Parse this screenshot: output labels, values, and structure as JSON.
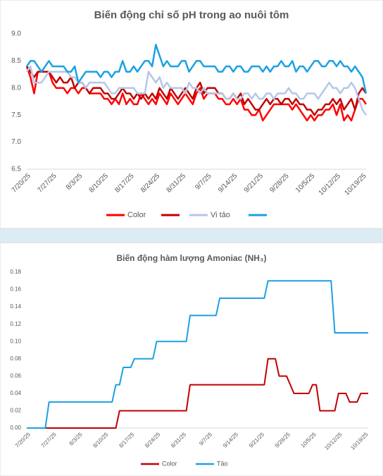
{
  "chart_data": [
    {
      "type": "line",
      "title": "Biến động chỉ số pH trong ao nuôi tôm",
      "categories": [
        "7/20/25",
        null,
        null,
        null,
        null,
        null,
        null,
        "7/27/25",
        null,
        null,
        null,
        null,
        null,
        null,
        "8/3/25",
        null,
        null,
        null,
        null,
        null,
        null,
        "8/10/25",
        null,
        null,
        null,
        null,
        null,
        null,
        "8/17/25",
        null,
        null,
        null,
        null,
        null,
        null,
        "8/24/25",
        null,
        null,
        null,
        null,
        null,
        null,
        "8/31/25",
        null,
        null,
        null,
        null,
        null,
        null,
        "9/7/25",
        null,
        null,
        null,
        null,
        null,
        null,
        "9/14/25",
        null,
        null,
        null,
        null,
        null,
        null,
        "9/21/25",
        null,
        null,
        null,
        null,
        null,
        null,
        "9/28/25",
        null,
        null,
        null,
        null,
        null,
        null,
        "10/5/25",
        null,
        null,
        null,
        null,
        null,
        null,
        "10/12/25",
        null,
        null,
        null,
        null,
        null,
        null,
        "10/19/25",
        null
      ],
      "series": [
        {
          "name": "Color",
          "color": "#ff0000",
          "values": [
            8.4,
            8.2,
            7.9,
            8.3,
            8.3,
            8.3,
            8.3,
            8.1,
            8.0,
            8.0,
            8.0,
            7.9,
            8.0,
            8.0,
            7.9,
            8.0,
            8.0,
            7.9,
            7.9,
            7.9,
            7.9,
            7.8,
            7.8,
            7.7,
            7.8,
            7.7,
            7.9,
            7.7,
            7.8,
            7.7,
            7.7,
            7.9,
            7.8,
            7.7,
            7.8,
            7.7,
            7.9,
            7.8,
            7.7,
            7.9,
            7.8,
            7.7,
            7.8,
            7.9,
            7.8,
            7.7,
            7.9,
            8.0,
            7.8,
            7.9,
            7.9,
            7.9,
            7.8,
            7.8,
            7.7,
            7.7,
            7.8,
            7.7,
            7.8,
            7.6,
            7.6,
            7.5,
            7.5,
            7.6,
            7.4,
            7.5,
            7.6,
            7.7,
            7.7,
            7.7,
            7.7,
            7.7,
            7.6,
            7.7,
            7.6,
            7.5,
            7.4,
            7.5,
            7.4,
            7.5,
            7.5,
            7.6,
            7.6,
            7.7,
            7.5,
            7.7,
            7.4,
            7.5,
            7.4,
            7.6,
            7.8,
            7.8,
            7.7
          ]
        },
        {
          "color": "#c00000",
          "values": [
            8.4,
            8.3,
            8.2,
            8.3,
            8.3,
            8.3,
            8.3,
            8.2,
            8.1,
            8.2,
            8.1,
            8.1,
            8.2,
            8.0,
            8.1,
            8.1,
            8.0,
            7.9,
            8.0,
            8.0,
            8.0,
            7.9,
            7.9,
            7.8,
            7.8,
            7.9,
            8.0,
            7.9,
            7.9,
            7.8,
            7.9,
            7.8,
            7.9,
            7.8,
            7.9,
            7.8,
            8.0,
            7.9,
            7.8,
            8.0,
            7.9,
            7.8,
            7.9,
            8.0,
            7.9,
            7.8,
            8.0,
            8.1,
            7.9,
            8.0,
            8.0,
            8.0,
            7.9,
            7.9,
            7.8,
            7.8,
            7.9,
            7.8,
            7.9,
            7.7,
            7.8,
            7.7,
            7.6,
            7.6,
            7.7,
            7.8,
            7.7,
            7.8,
            7.8,
            7.7,
            7.8,
            7.8,
            7.7,
            7.8,
            7.7,
            7.7,
            7.6,
            7.6,
            7.5,
            7.6,
            7.6,
            7.7,
            7.7,
            7.8,
            7.7,
            7.8,
            7.6,
            7.7,
            7.8,
            7.6,
            7.9,
            8.0,
            7.9
          ]
        },
        {
          "name": "Vi tảo",
          "color": "#b4c7e7",
          "values": [
            8.3,
            8.4,
            8.1,
            8.1,
            8.1,
            8.2,
            8.3,
            8.3,
            8.3,
            8.3,
            8.3,
            8.3,
            8.2,
            8.2,
            8.1,
            8.1,
            8.0,
            8.1,
            8.1,
            8.1,
            8.1,
            8.1,
            8.0,
            7.9,
            7.9,
            8.0,
            8.0,
            8.0,
            8.0,
            8.0,
            7.9,
            7.9,
            7.9,
            8.3,
            8.2,
            8.1,
            8.2,
            8.0,
            8.1,
            8.0,
            8.0,
            8.0,
            8.0,
            7.9,
            8.1,
            8.0,
            8.0,
            7.9,
            8.0,
            7.9,
            7.9,
            7.9,
            7.9,
            7.9,
            7.8,
            7.8,
            7.9,
            7.8,
            7.8,
            7.9,
            7.9,
            7.8,
            7.9,
            7.8,
            7.8,
            7.9,
            7.9,
            7.8,
            7.9,
            7.9,
            7.9,
            8.0,
            7.9,
            7.9,
            7.8,
            7.8,
            7.9,
            7.9,
            7.9,
            7.8,
            7.9,
            8.0,
            8.1,
            8.0,
            8.0,
            7.9,
            8.0,
            8.0,
            8.1,
            8.0,
            7.8,
            7.6,
            7.5
          ]
        },
        {
          "color": "#1ba1e2",
          "values": [
            8.4,
            8.5,
            8.5,
            8.4,
            8.3,
            8.4,
            8.5,
            8.4,
            8.4,
            8.4,
            8.4,
            8.3,
            8.3,
            8.4,
            8.1,
            8.2,
            8.3,
            8.3,
            8.3,
            8.3,
            8.2,
            8.3,
            8.3,
            8.2,
            8.3,
            8.3,
            8.5,
            8.3,
            8.3,
            8.4,
            8.3,
            8.4,
            8.5,
            8.5,
            8.4,
            8.8,
            8.6,
            8.4,
            8.5,
            8.4,
            8.4,
            8.4,
            8.5,
            8.5,
            8.3,
            8.4,
            8.5,
            8.5,
            8.4,
            8.4,
            8.4,
            8.4,
            8.3,
            8.3,
            8.4,
            8.4,
            8.3,
            8.4,
            8.4,
            8.3,
            8.3,
            8.4,
            8.4,
            8.4,
            8.3,
            8.4,
            8.3,
            8.4,
            8.4,
            8.5,
            8.4,
            8.4,
            8.5,
            8.3,
            8.4,
            8.4,
            8.3,
            8.4,
            8.5,
            8.5,
            8.4,
            8.4,
            8.5,
            8.5,
            8.4,
            8.5,
            8.4,
            8.4,
            8.3,
            8.4,
            8.3,
            8.2,
            7.9
          ]
        }
      ],
      "ylim": [
        6.5,
        9.0
      ],
      "yticks": [
        {
          "value": 6.5,
          "label": "6.5"
        },
        {
          "value": 7,
          "label": "7.0"
        },
        {
          "value": 7.5,
          "label": "7.5"
        },
        {
          "value": 8,
          "label": "8.0"
        },
        {
          "value": 8.5,
          "label": "8.5"
        },
        {
          "value": 9,
          "label": "9.0"
        }
      ],
      "grid": false,
      "legend": "bottom"
    },
    {
      "type": "line",
      "title": "Biến động hàm lượng Amoniac (NH₃)",
      "categories": [
        "7/20/25",
        null,
        null,
        null,
        null,
        null,
        null,
        "7/27/25",
        null,
        null,
        null,
        null,
        null,
        null,
        "8/3/25",
        null,
        null,
        null,
        null,
        null,
        null,
        "8/10/25",
        null,
        null,
        null,
        null,
        null,
        null,
        "8/17/25",
        null,
        null,
        null,
        null,
        null,
        null,
        "8/24/25",
        null,
        null,
        null,
        null,
        null,
        null,
        "8/31/25",
        null,
        null,
        null,
        null,
        null,
        null,
        "9/7/25",
        null,
        null,
        null,
        null,
        null,
        null,
        "9/14/25",
        null,
        null,
        null,
        null,
        null,
        null,
        "9/21/25",
        null,
        null,
        null,
        null,
        null,
        null,
        "9/28/25",
        null,
        null,
        null,
        null,
        null,
        null,
        "10/5/25",
        null,
        null,
        null,
        null,
        null,
        null,
        "10/12/25",
        null,
        null,
        null,
        null,
        null,
        null,
        "10/19/25",
        null
      ],
      "series": [
        {
          "name": "Color",
          "color": "#c00000",
          "values": [
            0,
            0,
            0,
            0,
            0,
            0,
            0,
            0,
            0,
            0,
            0,
            0,
            0,
            0,
            0,
            0,
            0,
            0,
            0,
            0,
            0,
            0,
            0,
            0,
            0,
            0.02,
            0.02,
            0.02,
            0.02,
            0.02,
            0.02,
            0.02,
            0.02,
            0.02,
            0.02,
            0.02,
            0.02,
            0.02,
            0.02,
            0.02,
            0.02,
            0.02,
            0.02,
            0.02,
            0.05,
            0.05,
            0.05,
            0.05,
            0.05,
            0.05,
            0.05,
            0.05,
            0.05,
            0.05,
            0.05,
            0.05,
            0.05,
            0.05,
            0.05,
            0.05,
            0.05,
            0.05,
            0.05,
            0.05,
            0.05,
            0.08,
            0.08,
            0.08,
            0.06,
            0.06,
            0.06,
            0.05,
            0.04,
            0.04,
            0.04,
            0.04,
            0.04,
            0.05,
            0.05,
            0.02,
            0.02,
            0.02,
            0.02,
            0.02,
            0.04,
            0.04,
            0.04,
            0.03,
            0.03,
            0.03,
            0.04,
            0.04,
            0.04
          ]
        },
        {
          "name": "Tảo",
          "color": "#1ba1e2",
          "values": [
            0,
            0,
            0,
            0,
            0,
            0,
            0.03,
            0.03,
            0.03,
            0.03,
            0.03,
            0.03,
            0.03,
            0.03,
            0.03,
            0.03,
            0.03,
            0.03,
            0.03,
            0.03,
            0.03,
            0.03,
            0.03,
            0.03,
            0.05,
            0.05,
            0.07,
            0.07,
            0.07,
            0.08,
            0.08,
            0.08,
            0.08,
            0.08,
            0.08,
            0.1,
            0.1,
            0.1,
            0.1,
            0.1,
            0.1,
            0.1,
            0.1,
            0.1,
            0.13,
            0.13,
            0.13,
            0.13,
            0.13,
            0.13,
            0.13,
            0.13,
            0.15,
            0.15,
            0.15,
            0.15,
            0.15,
            0.15,
            0.15,
            0.15,
            0.15,
            0.15,
            0.15,
            0.15,
            0.15,
            0.17,
            0.17,
            0.17,
            0.17,
            0.17,
            0.17,
            0.17,
            0.17,
            0.17,
            0.17,
            0.17,
            0.17,
            0.17,
            0.17,
            0.17,
            0.17,
            0.17,
            0.17,
            0.11,
            0.11,
            0.11,
            0.11,
            0.11,
            0.11,
            0.11,
            0.11,
            0.11,
            0.11
          ]
        }
      ],
      "ylim": [
        0,
        0.18
      ],
      "yticks": [
        {
          "value": 0,
          "label": "0.00"
        },
        {
          "value": 0.02,
          "label": "0.02"
        },
        {
          "value": 0.04,
          "label": "0.04"
        },
        {
          "value": 0.06,
          "label": "0.06"
        },
        {
          "value": 0.08,
          "label": "0.08"
        },
        {
          "value": 0.1,
          "label": "0.10"
        },
        {
          "value": 0.12,
          "label": "0.12"
        },
        {
          "value": 0.14,
          "label": "0.14"
        },
        {
          "value": 0.16,
          "label": "0.16"
        },
        {
          "value": 0.18,
          "label": "0.18"
        }
      ],
      "grid": false,
      "legend": "bottom"
    }
  ]
}
